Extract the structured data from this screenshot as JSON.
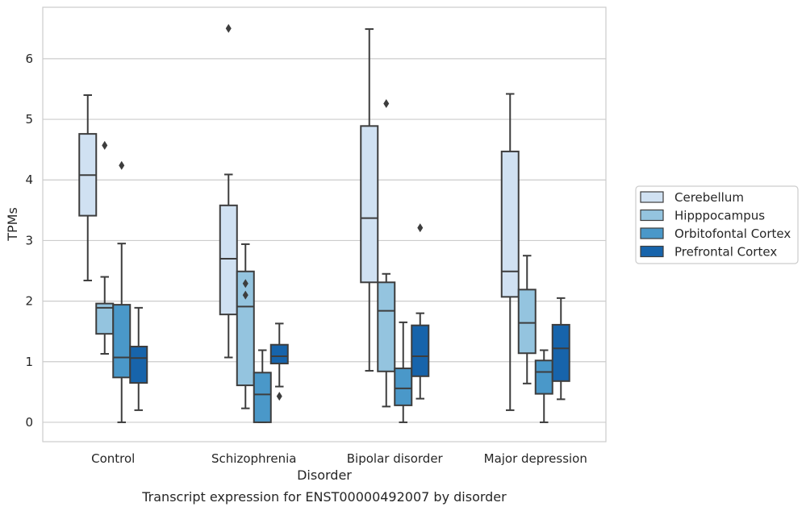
{
  "chart_data": {
    "type": "box",
    "title": "",
    "caption": "Transcript expression for ENST00000492007 by disorder",
    "xlabel": "Disorder",
    "ylabel": "TPMs",
    "ylim": [
      -0.32,
      6.85
    ],
    "yticks": [
      0,
      1,
      2,
      3,
      4,
      5,
      6
    ],
    "grid": "horizontal",
    "legend_position": "right",
    "categories": [
      "Control",
      "Schizophrenia",
      "Bipolar disorder",
      "Major depression"
    ],
    "series": [
      {
        "name": "Cerebellum",
        "color": "#d0e1f2",
        "boxes": [
          {
            "category": "Control",
            "whisker_low": 2.34,
            "q1": 3.41,
            "median": 4.08,
            "q3": 4.76,
            "whisker_high": 5.4,
            "outliers": []
          },
          {
            "category": "Schizophrenia",
            "whisker_low": 1.07,
            "q1": 1.78,
            "median": 2.7,
            "q3": 3.58,
            "whisker_high": 4.09,
            "outliers": [
              6.5
            ]
          },
          {
            "category": "Bipolar disorder",
            "whisker_low": 0.85,
            "q1": 2.31,
            "median": 3.37,
            "q3": 4.89,
            "whisker_high": 6.49,
            "outliers": []
          },
          {
            "category": "Major depression",
            "whisker_low": 0.2,
            "q1": 2.07,
            "median": 2.49,
            "q3": 4.47,
            "whisker_high": 5.42,
            "outliers": []
          }
        ]
      },
      {
        "name": "Hipppocampus",
        "color": "#94c4df",
        "boxes": [
          {
            "category": "Control",
            "whisker_low": 1.13,
            "q1": 1.46,
            "median": 1.89,
            "q3": 1.96,
            "whisker_high": 2.4,
            "outliers": [
              4.57
            ]
          },
          {
            "category": "Schizophrenia",
            "whisker_low": 0.23,
            "q1": 0.61,
            "median": 1.91,
            "q3": 2.49,
            "whisker_high": 2.94,
            "outliers": [
              2.29,
              2.1
            ]
          },
          {
            "category": "Bipolar disorder",
            "whisker_low": 0.26,
            "q1": 0.84,
            "median": 1.84,
            "q3": 2.31,
            "whisker_high": 2.45,
            "outliers": [
              5.26
            ]
          },
          {
            "category": "Major depression",
            "whisker_low": 0.64,
            "q1": 1.14,
            "median": 1.64,
            "q3": 2.19,
            "whisker_high": 2.75,
            "outliers": []
          }
        ]
      },
      {
        "name": "Orbitofontal Cortex",
        "color": "#4a98c9",
        "boxes": [
          {
            "category": "Control",
            "whisker_low": 0.0,
            "q1": 0.74,
            "median": 1.07,
            "q3": 1.94,
            "whisker_high": 2.95,
            "outliers": [
              4.24
            ]
          },
          {
            "category": "Schizophrenia",
            "whisker_low": 0.0,
            "q1": 0.0,
            "median": 0.46,
            "q3": 0.82,
            "whisker_high": 1.19,
            "outliers": []
          },
          {
            "category": "Bipolar disorder",
            "whisker_low": 0.0,
            "q1": 0.28,
            "median": 0.56,
            "q3": 0.89,
            "whisker_high": 1.65,
            "outliers": []
          },
          {
            "category": "Major depression",
            "whisker_low": 0.0,
            "q1": 0.47,
            "median": 0.83,
            "q3": 1.02,
            "whisker_high": 1.19,
            "outliers": []
          }
        ]
      },
      {
        "name": "Prefrontal Cortex",
        "color": "#1764ab",
        "boxes": [
          {
            "category": "Control",
            "whisker_low": 0.2,
            "q1": 0.65,
            "median": 1.06,
            "q3": 1.25,
            "whisker_high": 1.89,
            "outliers": []
          },
          {
            "category": "Schizophrenia",
            "whisker_low": 0.59,
            "q1": 0.97,
            "median": 1.09,
            "q3": 1.28,
            "whisker_high": 1.63,
            "outliers": [
              0.43
            ]
          },
          {
            "category": "Bipolar disorder",
            "whisker_low": 0.39,
            "q1": 0.76,
            "median": 1.09,
            "q3": 1.6,
            "whisker_high": 1.8,
            "outliers": [
              3.21
            ]
          },
          {
            "category": "Major depression",
            "whisker_low": 0.38,
            "q1": 0.68,
            "median": 1.22,
            "q3": 1.61,
            "whisker_high": 2.05,
            "outliers": []
          }
        ]
      }
    ]
  }
}
